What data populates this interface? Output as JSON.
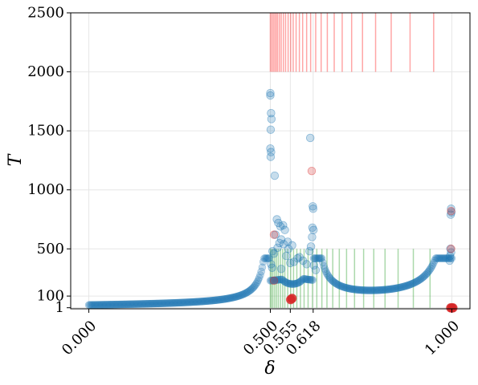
{
  "chart_data": {
    "type": "scatter",
    "xlabel": "δ",
    "ylabel": "T",
    "xlim": [
      -0.05,
      1.05
    ],
    "ylim": [
      -8,
      2500
    ],
    "x_ticks": [
      {
        "value": 0.0,
        "label": "0.000"
      },
      {
        "value": 0.5,
        "label": "0.500"
      },
      {
        "value": 0.555,
        "label": "0.555"
      },
      {
        "value": 0.618,
        "label": "0.618"
      },
      {
        "value": 1.0,
        "label": "1.000"
      }
    ],
    "y_ticks": [
      {
        "value": 1,
        "label": "1"
      },
      {
        "value": 100,
        "label": "100"
      },
      {
        "value": 500,
        "label": "500"
      },
      {
        "value": 1000,
        "label": "1000"
      },
      {
        "value": 1500,
        "label": "1500"
      },
      {
        "value": 2000,
        "label": "2000"
      },
      {
        "value": 2500,
        "label": "2500"
      }
    ],
    "grid": true,
    "red_vlines": {
      "color": "#ff0000",
      "y_range": [
        2000,
        2500
      ],
      "x": [
        0.5,
        0.504,
        0.508,
        0.512,
        0.516,
        0.52,
        0.525,
        0.53,
        0.536,
        0.542,
        0.549,
        0.556,
        0.563,
        0.571,
        0.58,
        0.589,
        0.6,
        0.611,
        0.625,
        0.64,
        0.657,
        0.676,
        0.698,
        0.724,
        0.754,
        0.79,
        0.833,
        0.885,
        0.95
      ]
    },
    "green_vlines": {
      "color": "#2ca02c",
      "y_range": [
        0,
        500
      ],
      "x": [
        0.5,
        0.503,
        0.507,
        0.512,
        0.517,
        0.522,
        0.528,
        0.534,
        0.54,
        0.548,
        0.556,
        0.564,
        0.573,
        0.583,
        0.593,
        0.604,
        0.616,
        0.628,
        0.642,
        0.656,
        0.672,
        0.69,
        0.71,
        0.732,
        0.757,
        0.785,
        0.816,
        0.852,
        0.894,
        0.94
      ]
    },
    "series": [
      {
        "color": "#1f77b4",
        "points": [
          [
            0.5,
            1820
          ],
          [
            0.5,
            1800
          ],
          [
            0.502,
            1650
          ],
          [
            0.503,
            1600
          ],
          [
            0.501,
            1510
          ],
          [
            0.5,
            1350
          ],
          [
            0.502,
            1320
          ],
          [
            0.501,
            1280
          ],
          [
            0.512,
            1120
          ],
          [
            0.61,
            1440
          ],
          [
            0.617,
            860
          ],
          [
            0.618,
            840
          ],
          [
            0.616,
            680
          ],
          [
            0.619,
            660
          ],
          [
            0.615,
            600
          ],
          [
            0.612,
            520
          ],
          [
            0.608,
            480
          ],
          [
            0.518,
            750
          ],
          [
            0.522,
            720
          ],
          [
            0.535,
            700
          ],
          [
            0.528,
            690
          ],
          [
            0.54,
            660
          ],
          [
            0.514,
            620
          ],
          [
            0.53,
            580
          ],
          [
            0.525,
            550
          ],
          [
            0.548,
            560
          ],
          [
            0.537,
            540
          ],
          [
            0.56,
            530
          ],
          [
            0.52,
            510
          ],
          [
            0.55,
            500
          ],
          [
            0.506,
            480
          ],
          [
            0.51,
            460
          ],
          [
            0.544,
            440
          ],
          [
            0.58,
            430
          ],
          [
            0.575,
            420
          ],
          [
            0.59,
            400
          ],
          [
            0.565,
            390
          ],
          [
            0.555,
            380
          ],
          [
            0.6,
            370
          ],
          [
            0.502,
            370
          ],
          [
            0.505,
            340
          ],
          [
            0.53,
            330
          ],
          [
            0.62,
            360
          ],
          [
            0.625,
            320
          ],
          [
            0.998,
            840
          ],
          [
            0.999,
            810
          ],
          [
            0.997,
            790
          ],
          [
            0.996,
            500
          ],
          [
            0.998,
            470
          ],
          [
            0.995,
            440
          ],
          [
            0.994,
            400
          ]
        ]
      },
      {
        "color": "#d62728",
        "points": [
          [
            0.51,
            620
          ],
          [
            0.614,
            1160
          ],
          [
            0.998,
            820
          ],
          [
            0.998,
            500
          ],
          [
            0.51,
            230
          ],
          [
            0.56,
            80
          ],
          [
            0.556,
            70
          ],
          [
            1.0,
            0
          ],
          [
            1.003,
            0
          ],
          [
            0.997,
            0
          ]
        ]
      }
    ]
  }
}
